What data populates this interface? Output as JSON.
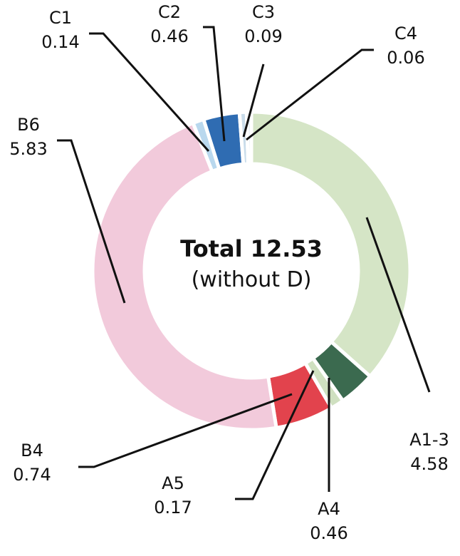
{
  "chart_data": {
    "type": "donut",
    "center_label": "Total 12.53",
    "center_sublabel": "(without D)",
    "categories": [
      "A1-3",
      "A4",
      "A5",
      "B4",
      "B6",
      "C1",
      "C2",
      "C3",
      "C4"
    ],
    "values": [
      4.58,
      0.46,
      0.17,
      0.74,
      5.83,
      0.14,
      0.46,
      0.09,
      0.06
    ],
    "colors": [
      "#d5e5c6",
      "#3b6a4f",
      "#cfe0c0",
      "#e2434d",
      "#f2cadb",
      "#b9d8ee",
      "#2f6cb2",
      "#c9dcea",
      "#dbe7f1"
    ]
  }
}
